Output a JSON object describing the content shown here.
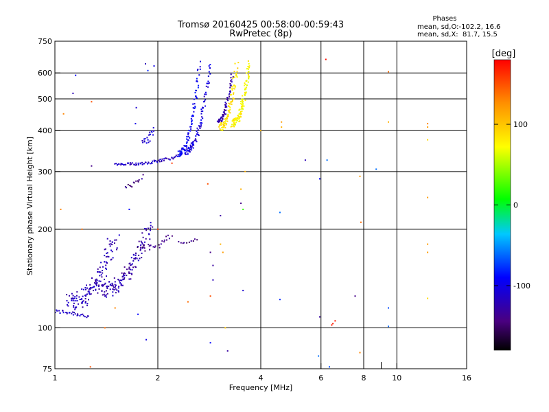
{
  "chart_data": {
    "type": "scatter",
    "title": "Tromsø 20160425 00:58:00-00:59:43",
    "subtitle": "RwPretec (8p)",
    "xlabel": "Frequency [MHz]",
    "ylabel": "Stationary phase Virtual Height [km]",
    "x_scale": "log",
    "y_scale": "log",
    "xlim": [
      1,
      16
    ],
    "ylim": [
      75,
      750
    ],
    "x_ticks": [
      1,
      2,
      4,
      6,
      8,
      10,
      16
    ],
    "x_grid": [
      2,
      4,
      6,
      8,
      10
    ],
    "x_minor_ticks": [
      9
    ],
    "y_ticks": [
      75,
      100,
      200,
      300,
      400,
      500,
      600,
      750
    ],
    "y_grid": [
      100,
      200,
      300,
      400,
      500,
      600
    ],
    "grid": true,
    "colorbar": {
      "label": "[deg]",
      "min": -180,
      "max": 180,
      "ticks": [
        100,
        0,
        -100
      ]
    },
    "stats": {
      "heading": "Phases",
      "o_line": "mean, sd,O:-102.2, 16.6",
      "x_line": "mean, sd,X:  81.7, 15.5"
    },
    "traces": [
      {
        "x_range": [
          1.0,
          1.25
        ],
        "h_range": [
          112,
          108
        ],
        "phase": -115,
        "n": 30,
        "spread": 0.03
      },
      {
        "x_range": [
          1.1,
          1.5
        ],
        "h_range": [
          120,
          190
        ],
        "phase": -120,
        "n": 140,
        "spread": 0.12
      },
      {
        "x_range": [
          1.35,
          1.9
        ],
        "h_range": [
          130,
          205
        ],
        "phase": -125,
        "n": 140,
        "spread": 0.1
      },
      {
        "x_range": [
          1.75,
          2.2
        ],
        "h_range": [
          175,
          190
        ],
        "phase": -140,
        "n": 25,
        "spread": 0.05
      },
      {
        "x_range": [
          2.3,
          2.6
        ],
        "h_range": [
          182,
          186
        ],
        "phase": -140,
        "n": 10,
        "spread": 0.02
      },
      {
        "x_range": [
          1.6,
          1.8
        ],
        "h_range": [
          270,
          290
        ],
        "phase": -140,
        "n": 15,
        "spread": 0.03
      },
      {
        "x_range": [
          1.5,
          2.3
        ],
        "h_range": [
          315,
          335
        ],
        "phase": -115,
        "n": 70,
        "spread": 0.02
      },
      {
        "x_range": [
          2.3,
          2.65
        ],
        "h_range": [
          340,
          640
        ],
        "phase": -95,
        "n": 90,
        "spread": 0.04
      },
      {
        "x_range": [
          2.4,
          2.85
        ],
        "h_range": [
          345,
          640
        ],
        "phase": -105,
        "n": 90,
        "spread": 0.04
      },
      {
        "x_range": [
          3.0,
          3.3
        ],
        "h_range": [
          430,
          600
        ],
        "phase": -125,
        "n": 60,
        "spread": 0.04
      },
      {
        "x_range": [
          3.05,
          3.4
        ],
        "h_range": [
          410,
          640
        ],
        "phase": 85,
        "n": 90,
        "spread": 0.05
      },
      {
        "x_range": [
          3.3,
          3.7
        ],
        "h_range": [
          420,
          640
        ],
        "phase": 75,
        "n": 110,
        "spread": 0.05
      },
      {
        "x_range": [
          1.8,
          1.95
        ],
        "h_range": [
          370,
          410
        ],
        "phase": -110,
        "n": 20,
        "spread": 0.05
      }
    ],
    "points": [
      {
        "x": 1.15,
        "y": 590,
        "phase": -90
      },
      {
        "x": 1.13,
        "y": 520,
        "phase": -120
      },
      {
        "x": 1.06,
        "y": 450,
        "phase": 130
      },
      {
        "x": 1.28,
        "y": 490,
        "phase": 150
      },
      {
        "x": 1.28,
        "y": 312,
        "phase": -140
      },
      {
        "x": 1.73,
        "y": 470,
        "phase": -110
      },
      {
        "x": 1.72,
        "y": 420,
        "phase": -100
      },
      {
        "x": 1.84,
        "y": 640,
        "phase": -120
      },
      {
        "x": 1.87,
        "y": 610,
        "phase": -80
      },
      {
        "x": 1.95,
        "y": 630,
        "phase": -100
      },
      {
        "x": 2.2,
        "y": 318,
        "phase": 160
      },
      {
        "x": 2.8,
        "y": 275,
        "phase": 150
      },
      {
        "x": 1.65,
        "y": 230,
        "phase": -90
      },
      {
        "x": 2.0,
        "y": 200,
        "phase": 160
      },
      {
        "x": 2.85,
        "y": 170,
        "phase": -140
      },
      {
        "x": 2.9,
        "y": 155,
        "phase": -130
      },
      {
        "x": 2.9,
        "y": 140,
        "phase": -120
      },
      {
        "x": 2.85,
        "y": 125,
        "phase": 150
      },
      {
        "x": 2.85,
        "y": 90,
        "phase": -90
      },
      {
        "x": 3.05,
        "y": 220,
        "phase": -130
      },
      {
        "x": 3.05,
        "y": 180,
        "phase": 110
      },
      {
        "x": 3.1,
        "y": 170,
        "phase": 120
      },
      {
        "x": 3.15,
        "y": 100,
        "phase": 100
      },
      {
        "x": 3.2,
        "y": 85,
        "phase": -130
      },
      {
        "x": 3.5,
        "y": 240,
        "phase": -140
      },
      {
        "x": 3.55,
        "y": 230,
        "phase": 20
      },
      {
        "x": 3.5,
        "y": 265,
        "phase": 110
      },
      {
        "x": 3.6,
        "y": 300,
        "phase": 110
      },
      {
        "x": 3.55,
        "y": 130,
        "phase": -110
      },
      {
        "x": 1.85,
        "y": 92,
        "phase": -100
      },
      {
        "x": 1.5,
        "y": 115,
        "phase": 130
      },
      {
        "x": 1.75,
        "y": 110,
        "phase": -90
      },
      {
        "x": 1.4,
        "y": 100,
        "phase": 140
      },
      {
        "x": 1.27,
        "y": 76,
        "phase": 150
      },
      {
        "x": 1.2,
        "y": 200,
        "phase": 140
      },
      {
        "x": 1.04,
        "y": 230,
        "phase": 130
      },
      {
        "x": 2.45,
        "y": 120,
        "phase": 140
      },
      {
        "x": 4.0,
        "y": 400,
        "phase": 110
      },
      {
        "x": 4.6,
        "y": 425,
        "phase": 120
      },
      {
        "x": 4.6,
        "y": 410,
        "phase": 110
      },
      {
        "x": 4.55,
        "y": 225,
        "phase": -60
      },
      {
        "x": 4.55,
        "y": 122,
        "phase": -80
      },
      {
        "x": 5.4,
        "y": 325,
        "phase": -120
      },
      {
        "x": 5.95,
        "y": 285,
        "phase": -90
      },
      {
        "x": 5.95,
        "y": 108,
        "phase": -130
      },
      {
        "x": 5.9,
        "y": 82,
        "phase": -60
      },
      {
        "x": 6.25,
        "y": 325,
        "phase": -60
      },
      {
        "x": 6.2,
        "y": 660,
        "phase": 175
      },
      {
        "x": 6.35,
        "y": 76,
        "phase": -70
      },
      {
        "x": 6.45,
        "y": 102,
        "phase": 170
      },
      {
        "x": 6.5,
        "y": 103,
        "phase": 170
      },
      {
        "x": 6.6,
        "y": 105,
        "phase": 170
      },
      {
        "x": 7.55,
        "y": 125,
        "phase": -140
      },
      {
        "x": 7.8,
        "y": 290,
        "phase": 120
      },
      {
        "x": 7.85,
        "y": 210,
        "phase": 140
      },
      {
        "x": 7.8,
        "y": 84,
        "phase": 130
      },
      {
        "x": 8.7,
        "y": 305,
        "phase": -60
      },
      {
        "x": 9.45,
        "y": 115,
        "phase": -70
      },
      {
        "x": 9.45,
        "y": 101,
        "phase": -60
      },
      {
        "x": 9.45,
        "y": 605,
        "phase": 140
      },
      {
        "x": 9.45,
        "y": 425,
        "phase": 110
      },
      {
        "x": 12.3,
        "y": 420,
        "phase": 130
      },
      {
        "x": 12.3,
        "y": 410,
        "phase": 120
      },
      {
        "x": 12.3,
        "y": 375,
        "phase": 90
      },
      {
        "x": 12.3,
        "y": 250,
        "phase": 120
      },
      {
        "x": 12.3,
        "y": 180,
        "phase": 120
      },
      {
        "x": 12.3,
        "y": 170,
        "phase": 120
      },
      {
        "x": 12.3,
        "y": 123,
        "phase": 90
      }
    ]
  }
}
